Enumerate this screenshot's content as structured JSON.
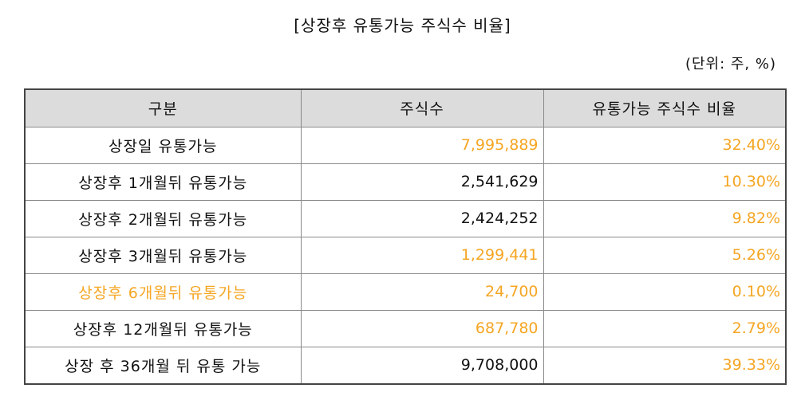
{
  "colors": {
    "highlight": "#f5a623",
    "header_bg": "#dcdcdc",
    "border": "#8a8a8a"
  },
  "title": "[상장후 유통가능 주식수 비율]",
  "unit": "(단위: 주, %)",
  "table": {
    "headers": [
      "구분",
      "주식수",
      "유통가능 주식수 비율"
    ],
    "rows": [
      {
        "label": "상장일 유통가능",
        "shares": "7,995,889",
        "ratio": "32.40%",
        "label_hl": false,
        "shares_hl": true,
        "ratio_hl": true
      },
      {
        "label": "상장후 1개월뒤 유통가능",
        "shares": "2,541,629",
        "ratio": "10.30%",
        "label_hl": false,
        "shares_hl": false,
        "ratio_hl": true
      },
      {
        "label": "상장후 2개월뒤 유통가능",
        "shares": "2,424,252",
        "ratio": "9.82%",
        "label_hl": false,
        "shares_hl": false,
        "ratio_hl": true
      },
      {
        "label": "상장후 3개월뒤 유통가능",
        "shares": "1,299,441",
        "ratio": "5.26%",
        "label_hl": false,
        "shares_hl": true,
        "ratio_hl": true
      },
      {
        "label": "상장후 6개월뒤 유통가능",
        "shares": "24,700",
        "ratio": "0.10%",
        "label_hl": true,
        "shares_hl": true,
        "ratio_hl": true
      },
      {
        "label": "상장후 12개월뒤 유통가능",
        "shares": "687,780",
        "ratio": "2.79%",
        "label_hl": false,
        "shares_hl": true,
        "ratio_hl": true
      },
      {
        "label": "상장 후 36개월 뒤 유통 가능",
        "shares": "9,708,000",
        "ratio": "39.33%",
        "label_hl": false,
        "shares_hl": false,
        "ratio_hl": true
      }
    ]
  }
}
